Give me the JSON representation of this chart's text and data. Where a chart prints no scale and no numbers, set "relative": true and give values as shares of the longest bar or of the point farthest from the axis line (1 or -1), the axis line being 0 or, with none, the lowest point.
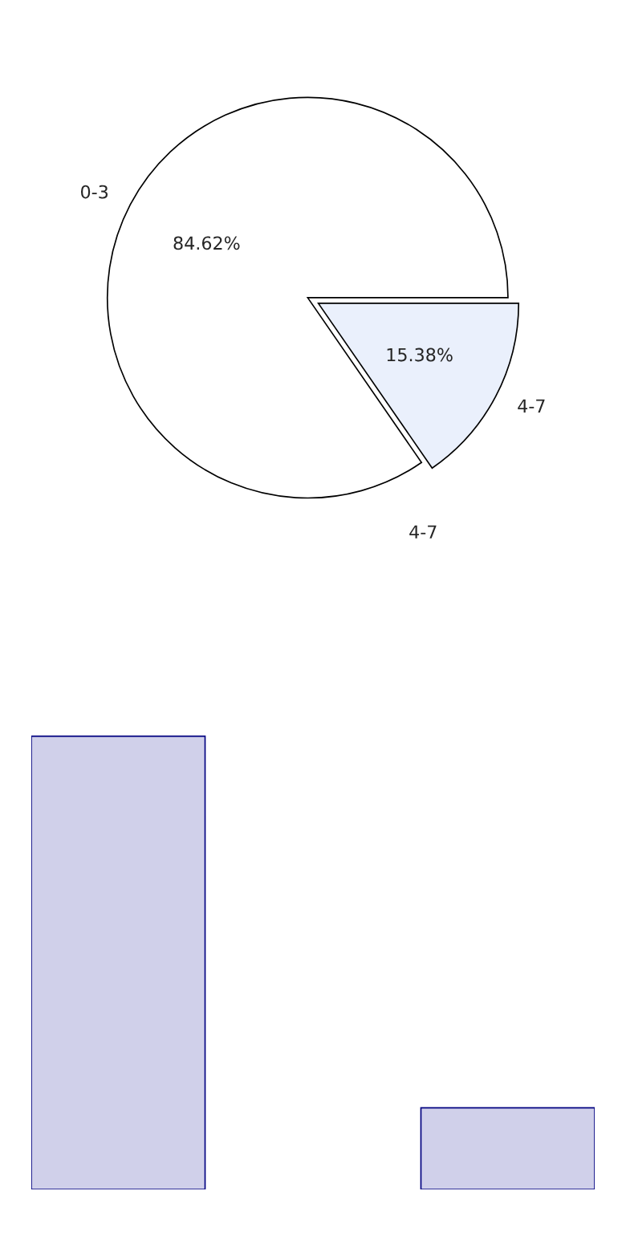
{
  "chart_data": [
    {
      "type": "pie",
      "categories": [
        "0-3",
        "4-7"
      ],
      "values": [
        84.62,
        15.38
      ],
      "colors": [
        "#ffffff",
        "#eaf0fc"
      ],
      "value_labels": [
        "84.62%",
        "15.38%"
      ],
      "annotations": [
        "4-7"
      ]
    },
    {
      "type": "bar",
      "categories": [
        null,
        null
      ],
      "values": [
        1,
        0.18
      ],
      "colors": [
        "#ccccee",
        "#ccccee"
      ],
      "relative": true
    }
  ]
}
